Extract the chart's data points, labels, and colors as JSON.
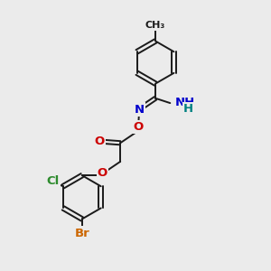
{
  "bg_color": "#ebebeb",
  "bond_color": "#1a1a1a",
  "bond_width": 1.4,
  "atom_colors": {
    "N": "#0000cc",
    "O": "#cc0000",
    "Cl": "#2d8b2d",
    "Br": "#cc6600",
    "H": "#008080",
    "C": "#1a1a1a"
  },
  "font_size_atom": 9.5,
  "font_size_small": 7.5,
  "font_size_CH3": 8.0
}
